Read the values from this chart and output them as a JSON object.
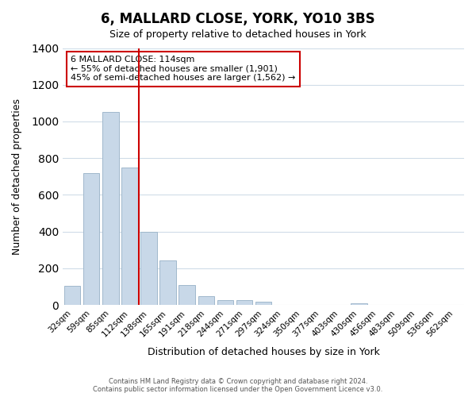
{
  "title": "6, MALLARD CLOSE, YORK, YO10 3BS",
  "subtitle": "Size of property relative to detached houses in York",
  "xlabel": "Distribution of detached houses by size in York",
  "ylabel": "Number of detached properties",
  "bar_color": "#c8d8e8",
  "bar_edgecolor": "#a0b8cc",
  "categories": [
    "32sqm",
    "59sqm",
    "85sqm",
    "112sqm",
    "138sqm",
    "165sqm",
    "191sqm",
    "218sqm",
    "244sqm",
    "271sqm",
    "297sqm",
    "324sqm",
    "350sqm",
    "377sqm",
    "403sqm",
    "430sqm",
    "456sqm",
    "483sqm",
    "509sqm",
    "536sqm",
    "562sqm"
  ],
  "values": [
    105,
    720,
    1050,
    750,
    400,
    245,
    110,
    50,
    25,
    25,
    20,
    0,
    0,
    0,
    0,
    10,
    0,
    0,
    0,
    0,
    0
  ],
  "ylim": [
    0,
    1400
  ],
  "yticks": [
    0,
    200,
    400,
    600,
    800,
    1000,
    1200,
    1400
  ],
  "vline_x": 3.5,
  "vline_color": "#cc0000",
  "annotation_title": "6 MALLARD CLOSE: 114sqm",
  "annotation_line1": "← 55% of detached houses are smaller (1,901)",
  "annotation_line2": "45% of semi-detached houses are larger (1,562) →",
  "annotation_box_edgecolor": "#cc0000",
  "footer_line1": "Contains HM Land Registry data © Crown copyright and database right 2024.",
  "footer_line2": "Contains public sector information licensed under the Open Government Licence v3.0.",
  "background_color": "#ffffff",
  "grid_color": "#d0dce8"
}
